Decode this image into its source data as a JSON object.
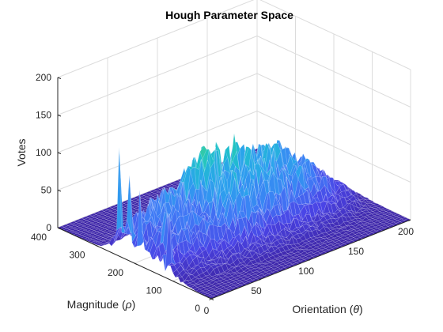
{
  "chart_data": {
    "type": "surface3d",
    "title": "Hough Parameter Space",
    "xlabel": "Orientation (θ)",
    "ylabel": "Magnitude (ρ)",
    "zlabel": "Votes",
    "xlabel_parts": [
      "Orientation (",
      "θ",
      ")"
    ],
    "ylabel_parts": [
      "Magnitude (",
      "ρ",
      ")"
    ],
    "xlim": [
      0,
      200
    ],
    "ylim": [
      0,
      400
    ],
    "zlim": [
      0,
      200
    ],
    "xticks": [
      0,
      50,
      100,
      150,
      200
    ],
    "yticks": [
      0,
      100,
      200,
      300,
      400
    ],
    "zticks": [
      0,
      50,
      100,
      150,
      200
    ],
    "grid": true,
    "colormap": [
      "#3e26a8",
      "#4a44e6",
      "#3f7bf6",
      "#2aa4ec",
      "#1ec2c8",
      "#44d18a",
      "#b7cf38",
      "#f9e52c"
    ],
    "rho_profile": [
      [
        0,
        0
      ],
      [
        20,
        1
      ],
      [
        40,
        3
      ],
      [
        60,
        6
      ],
      [
        80,
        12
      ],
      [
        95,
        20
      ],
      [
        110,
        34
      ],
      [
        130,
        50
      ],
      [
        150,
        58
      ],
      [
        170,
        62
      ],
      [
        190,
        66
      ],
      [
        210,
        70
      ],
      [
        230,
        68
      ],
      [
        250,
        55
      ],
      [
        265,
        35
      ],
      [
        275,
        12
      ],
      [
        290,
        5
      ],
      [
        310,
        2
      ],
      [
        330,
        1
      ],
      [
        360,
        0
      ],
      [
        400,
        0
      ]
    ],
    "theta_profile": [
      [
        0,
        0.35
      ],
      [
        20,
        0.55
      ],
      [
        40,
        0.75
      ],
      [
        60,
        0.95
      ],
      [
        80,
        1.1
      ],
      [
        100,
        1.0
      ],
      [
        120,
        0.95
      ],
      [
        140,
        0.85
      ],
      [
        160,
        0.7
      ],
      [
        180,
        0.35
      ],
      [
        195,
        0.1
      ],
      [
        200,
        0.05
      ]
    ],
    "peaks": [
      {
        "theta": 0,
        "rho": 240,
        "votes": 145
      },
      {
        "theta": 0,
        "rho": 215,
        "votes": 125
      },
      {
        "theta": 0,
        "rho": 185,
        "votes": 110
      },
      {
        "theta": 12,
        "rho": 150,
        "votes": 105
      },
      {
        "theta": 5,
        "rho": 120,
        "votes": 98
      },
      {
        "theta": 90,
        "rho": 260,
        "votes": 140
      },
      {
        "theta": 95,
        "rho": 230,
        "votes": 125
      },
      {
        "theta": 100,
        "rho": 200,
        "votes": 120
      },
      {
        "theta": 110,
        "rho": 175,
        "votes": 128
      },
      {
        "theta": 125,
        "rho": 160,
        "votes": 115
      },
      {
        "theta": 140,
        "rho": 130,
        "votes": 105
      }
    ]
  }
}
